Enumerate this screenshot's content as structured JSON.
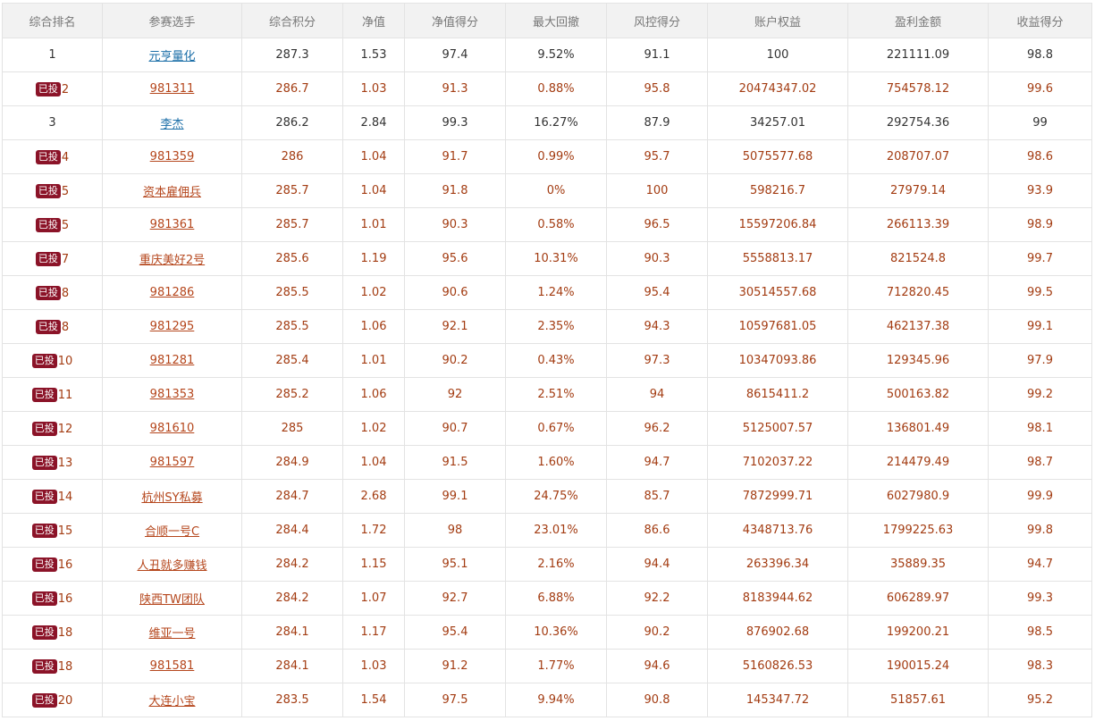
{
  "columns": [
    "综合排名",
    "参赛选手",
    "综合积分",
    "净值",
    "净值得分",
    "最大回撤",
    "风控得分",
    "账户权益",
    "盈利金额",
    "收益得分"
  ],
  "badge_label": "已投",
  "rows": [
    {
      "rank": "1",
      "name": "元亨量化",
      "score": "287.3",
      "nav": "1.53",
      "nav_score": "97.4",
      "drawdown": "9.52%",
      "risk_score": "91.1",
      "equity": "100",
      "profit": "221111.09",
      "return_score": "98.8",
      "invested": false
    },
    {
      "rank": "2",
      "name": "981311",
      "score": "286.7",
      "nav": "1.03",
      "nav_score": "91.3",
      "drawdown": "0.88%",
      "risk_score": "95.8",
      "equity": "20474347.02",
      "profit": "754578.12",
      "return_score": "99.6",
      "invested": true
    },
    {
      "rank": "3",
      "name": "李杰",
      "score": "286.2",
      "nav": "2.84",
      "nav_score": "99.3",
      "drawdown": "16.27%",
      "risk_score": "87.9",
      "equity": "34257.01",
      "profit": "292754.36",
      "return_score": "99",
      "invested": false
    },
    {
      "rank": "4",
      "name": "981359",
      "score": "286",
      "nav": "1.04",
      "nav_score": "91.7",
      "drawdown": "0.99%",
      "risk_score": "95.7",
      "equity": "5075577.68",
      "profit": "208707.07",
      "return_score": "98.6",
      "invested": true
    },
    {
      "rank": "5",
      "name": "资本雇佣兵",
      "score": "285.7",
      "nav": "1.04",
      "nav_score": "91.8",
      "drawdown": "0%",
      "risk_score": "100",
      "equity": "598216.7",
      "profit": "27979.14",
      "return_score": "93.9",
      "invested": true
    },
    {
      "rank": "5",
      "name": "981361",
      "score": "285.7",
      "nav": "1.01",
      "nav_score": "90.3",
      "drawdown": "0.58%",
      "risk_score": "96.5",
      "equity": "15597206.84",
      "profit": "266113.39",
      "return_score": "98.9",
      "invested": true
    },
    {
      "rank": "7",
      "name": "重庆美好2号",
      "score": "285.6",
      "nav": "1.19",
      "nav_score": "95.6",
      "drawdown": "10.31%",
      "risk_score": "90.3",
      "equity": "5558813.17",
      "profit": "821524.8",
      "return_score": "99.7",
      "invested": true
    },
    {
      "rank": "8",
      "name": "981286",
      "score": "285.5",
      "nav": "1.02",
      "nav_score": "90.6",
      "drawdown": "1.24%",
      "risk_score": "95.4",
      "equity": "30514557.68",
      "profit": "712820.45",
      "return_score": "99.5",
      "invested": true
    },
    {
      "rank": "8",
      "name": "981295",
      "score": "285.5",
      "nav": "1.06",
      "nav_score": "92.1",
      "drawdown": "2.35%",
      "risk_score": "94.3",
      "equity": "10597681.05",
      "profit": "462137.38",
      "return_score": "99.1",
      "invested": true
    },
    {
      "rank": "10",
      "name": "981281",
      "score": "285.4",
      "nav": "1.01",
      "nav_score": "90.2",
      "drawdown": "0.43%",
      "risk_score": "97.3",
      "equity": "10347093.86",
      "profit": "129345.96",
      "return_score": "97.9",
      "invested": true
    },
    {
      "rank": "11",
      "name": "981353",
      "score": "285.2",
      "nav": "1.06",
      "nav_score": "92",
      "drawdown": "2.51%",
      "risk_score": "94",
      "equity": "8615411.2",
      "profit": "500163.82",
      "return_score": "99.2",
      "invested": true
    },
    {
      "rank": "12",
      "name": "981610",
      "score": "285",
      "nav": "1.02",
      "nav_score": "90.7",
      "drawdown": "0.67%",
      "risk_score": "96.2",
      "equity": "5125007.57",
      "profit": "136801.49",
      "return_score": "98.1",
      "invested": true
    },
    {
      "rank": "13",
      "name": "981597",
      "score": "284.9",
      "nav": "1.04",
      "nav_score": "91.5",
      "drawdown": "1.60%",
      "risk_score": "94.7",
      "equity": "7102037.22",
      "profit": "214479.49",
      "return_score": "98.7",
      "invested": true
    },
    {
      "rank": "14",
      "name": "杭州SY私募",
      "score": "284.7",
      "nav": "2.68",
      "nav_score": "99.1",
      "drawdown": "24.75%",
      "risk_score": "85.7",
      "equity": "7872999.71",
      "profit": "6027980.9",
      "return_score": "99.9",
      "invested": true
    },
    {
      "rank": "15",
      "name": "合顺一号C",
      "score": "284.4",
      "nav": "1.72",
      "nav_score": "98",
      "drawdown": "23.01%",
      "risk_score": "86.6",
      "equity": "4348713.76",
      "profit": "1799225.63",
      "return_score": "99.8",
      "invested": true
    },
    {
      "rank": "16",
      "name": "人丑就多赚钱",
      "score": "284.2",
      "nav": "1.15",
      "nav_score": "95.1",
      "drawdown": "2.16%",
      "risk_score": "94.4",
      "equity": "263396.34",
      "profit": "35889.35",
      "return_score": "94.7",
      "invested": true
    },
    {
      "rank": "16",
      "name": "陕西TW团队",
      "score": "284.2",
      "nav": "1.07",
      "nav_score": "92.7",
      "drawdown": "6.88%",
      "risk_score": "92.2",
      "equity": "8183944.62",
      "profit": "606289.97",
      "return_score": "99.3",
      "invested": true
    },
    {
      "rank": "18",
      "name": "维亚一号",
      "score": "284.1",
      "nav": "1.17",
      "nav_score": "95.4",
      "drawdown": "10.36%",
      "risk_score": "90.2",
      "equity": "876902.68",
      "profit": "199200.21",
      "return_score": "98.5",
      "invested": true
    },
    {
      "rank": "18",
      "name": "981581",
      "score": "284.1",
      "nav": "1.03",
      "nav_score": "91.2",
      "drawdown": "1.77%",
      "risk_score": "94.6",
      "equity": "5160826.53",
      "profit": "190015.24",
      "return_score": "98.3",
      "invested": true
    },
    {
      "rank": "20",
      "name": "大连小宝",
      "score": "283.5",
      "nav": "1.54",
      "nav_score": "97.5",
      "drawdown": "9.94%",
      "risk_score": "90.8",
      "equity": "145347.72",
      "profit": "51857.61",
      "return_score": "95.2",
      "invested": true
    }
  ]
}
